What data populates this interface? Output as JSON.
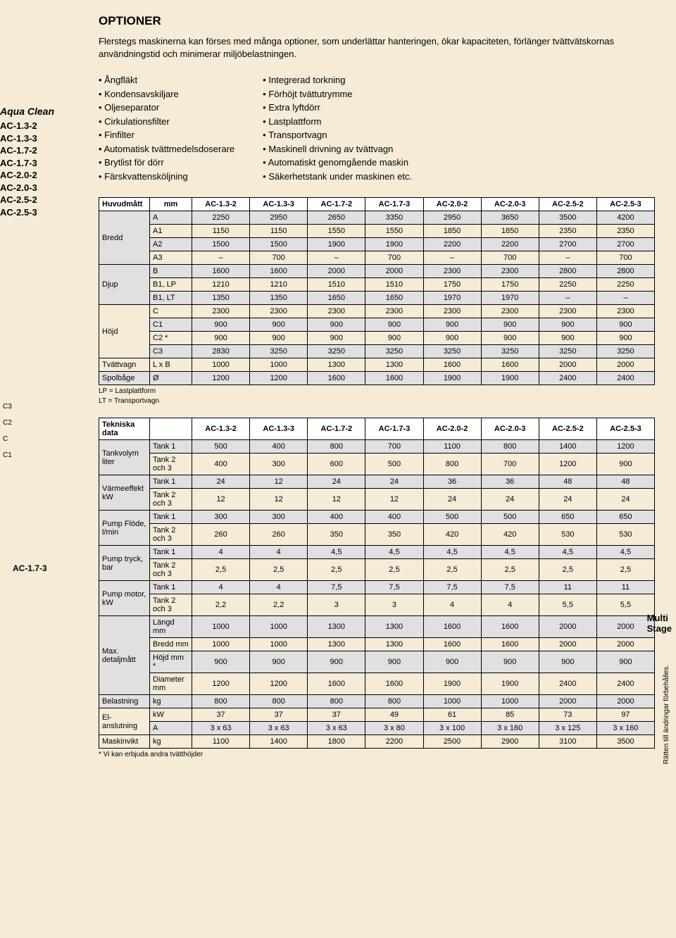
{
  "title": "OPTIONER",
  "intro": "Flerstegs maskinerna kan förses med många optioner, som underlättar hanteringen, ökar kapaciteten, förlänger tvättvätskornas användningstid och minimerar miljöbelastningen.",
  "options_left": [
    "Ångfläkt",
    "Kondensavskiljare",
    "Oljeseparator",
    "Cirkulationsfilter",
    "Finfilter",
    "Automatisk tvättmedelsdoserare",
    "Brytlist för dörr",
    "Färskvattensköljning"
  ],
  "options_right": [
    "Integrerad torkning",
    "Förhöjt tvättutrymme",
    "Extra lyftdörr",
    "Lastplattform",
    "Transportvagn",
    "Maskinell drivning av tvättvagn",
    "Automatiskt genomgående maskin",
    "Säkerhetstank under maskinen etc."
  ],
  "brand": "Aqua Clean",
  "models": [
    "AC-1.3-2",
    "AC-1.3-3",
    "AC-1.7-2",
    "AC-1.7-3",
    "AC-2.0-2",
    "AC-2.0-3",
    "AC-2.5-2",
    "AC-2.5-3"
  ],
  "dia_labels": [
    "C3",
    "C2",
    "C",
    "C1"
  ],
  "ac173_label": "AC-1.7-3",
  "table1": {
    "header": [
      "Huvudmått",
      "mm",
      "AC-1.3-2",
      "AC-1.3-3",
      "AC-1.7-2",
      "AC-1.7-3",
      "AC-2.0-2",
      "AC-2.0-3",
      "AC-2.5-2",
      "AC-2.5-3"
    ],
    "groups": [
      {
        "name": "Bredd",
        "rows": [
          {
            "k": "A",
            "v": [
              "2250",
              "2950",
              "2650",
              "3350",
              "2950",
              "3650",
              "3500",
              "4200"
            ],
            "shade": true
          },
          {
            "k": "A1",
            "v": [
              "1150",
              "1150",
              "1550",
              "1550",
              "1850",
              "1850",
              "2350",
              "2350"
            ]
          },
          {
            "k": "A2",
            "v": [
              "1500",
              "1500",
              "1900",
              "1900",
              "2200",
              "2200",
              "2700",
              "2700"
            ],
            "shade": true
          },
          {
            "k": "A3",
            "v": [
              "–",
              "700",
              "–",
              "700",
              "–",
              "700",
              "–",
              "700"
            ]
          }
        ]
      },
      {
        "name": "Djup",
        "rows": [
          {
            "k": "B",
            "v": [
              "1600",
              "1600",
              "2000",
              "2000",
              "2300",
              "2300",
              "2800",
              "2800"
            ],
            "shade": true
          },
          {
            "k": "B1, LP",
            "v": [
              "1210",
              "1210",
              "1510",
              "1510",
              "1750",
              "1750",
              "2250",
              "2250"
            ]
          },
          {
            "k": "B1, LT",
            "v": [
              "1350",
              "1350",
              "1650",
              "1650",
              "1970",
              "1970",
              "–",
              "–"
            ],
            "shade": true
          }
        ]
      },
      {
        "name": "Höjd",
        "rows": [
          {
            "k": "C",
            "v": [
              "2300",
              "2300",
              "2300",
              "2300",
              "2300",
              "2300",
              "2300",
              "2300"
            ]
          },
          {
            "k": "C1",
            "v": [
              "900",
              "900",
              "900",
              "900",
              "900",
              "900",
              "900",
              "900"
            ],
            "shade": true
          },
          {
            "k": "C2 *",
            "v": [
              "900",
              "900",
              "900",
              "900",
              "900",
              "900",
              "900",
              "900"
            ]
          },
          {
            "k": "C3",
            "v": [
              "2830",
              "3250",
              "3250",
              "3250",
              "3250",
              "3250",
              "3250",
              "3250"
            ],
            "shade": true
          }
        ]
      },
      {
        "name": "Tvättvagn",
        "single": true,
        "rows": [
          {
            "k": "L x B",
            "v": [
              "1000",
              "1000",
              "1300",
              "1300",
              "1600",
              "1600",
              "2000",
              "2000"
            ]
          }
        ]
      },
      {
        "name": "Spolbåge",
        "single": true,
        "rows": [
          {
            "k": "Ø",
            "v": [
              "1200",
              "1200",
              "1600",
              "1600",
              "1900",
              "1900",
              "2400",
              "2400"
            ],
            "shade": true
          }
        ]
      }
    ],
    "note1": "LP = Lastplattform",
    "note2": "LT = Transportvagn"
  },
  "table2": {
    "header": [
      "Tekniska data",
      "",
      "AC-1.3-2",
      "AC-1.3-3",
      "AC-1.7-2",
      "AC-1.7-3",
      "AC-2.0-2",
      "AC-2.0-3",
      "AC-2.5-2",
      "AC-2.5-3"
    ],
    "groups": [
      {
        "name": "Tankvolym liter",
        "rows": [
          {
            "k": "Tank 1",
            "v": [
              "500",
              "400",
              "800",
              "700",
              "1100",
              "800",
              "1400",
              "1200"
            ],
            "shade": true
          },
          {
            "k": "Tank 2 och 3",
            "v": [
              "400",
              "300",
              "600",
              "500",
              "800",
              "700",
              "1200",
              "900"
            ]
          }
        ]
      },
      {
        "name": "Värmeeffekt kW",
        "rows": [
          {
            "k": "Tank 1",
            "v": [
              "24",
              "12",
              "24",
              "24",
              "36",
              "36",
              "48",
              "48"
            ],
            "shade": true
          },
          {
            "k": "Tank 2 och 3",
            "v": [
              "12",
              "12",
              "12",
              "12",
              "24",
              "24",
              "24",
              "24"
            ]
          }
        ]
      },
      {
        "name": "Pump Flöde, l/min",
        "rows": [
          {
            "k": "Tank 1",
            "v": [
              "300",
              "300",
              "400",
              "400",
              "500",
              "500",
              "650",
              "650"
            ],
            "shade": true
          },
          {
            "k": "Tank 2 och 3",
            "v": [
              "260",
              "260",
              "350",
              "350",
              "420",
              "420",
              "530",
              "530"
            ]
          }
        ]
      },
      {
        "name": "Pump tryck, bar",
        "rows": [
          {
            "k": "Tank 1",
            "v": [
              "4",
              "4",
              "4,5",
              "4,5",
              "4,5",
              "4,5",
              "4,5",
              "4,5"
            ],
            "shade": true
          },
          {
            "k": "Tank 2 och 3",
            "v": [
              "2,5",
              "2,5",
              "2,5",
              "2,5",
              "2,5",
              "2,5",
              "2,5",
              "2,5"
            ]
          }
        ]
      },
      {
        "name": "Pump motor, kW",
        "rows": [
          {
            "k": "Tank 1",
            "v": [
              "4",
              "4",
              "7,5",
              "7,5",
              "7,5",
              "7,5",
              "11",
              "11"
            ],
            "shade": true
          },
          {
            "k": "Tank 2 och 3",
            "v": [
              "2,2",
              "2,2",
              "3",
              "3",
              "4",
              "4",
              "5,5",
              "5,5"
            ]
          }
        ]
      },
      {
        "name": "Max. detaljmått",
        "rows": [
          {
            "k": "Längd  mm",
            "v": [
              "1000",
              "1000",
              "1300",
              "1300",
              "1600",
              "1600",
              "2000",
              "2000"
            ],
            "shade": true
          },
          {
            "k": "Bredd  mm",
            "v": [
              "1000",
              "1000",
              "1300",
              "1300",
              "1600",
              "1600",
              "2000",
              "2000"
            ]
          },
          {
            "k": "Höjd   mm *",
            "v": [
              "900",
              "900",
              "900",
              "900",
              "900",
              "900",
              "900",
              "900"
            ],
            "shade": true
          },
          {
            "k": "Diameter mm",
            "v": [
              "1200",
              "1200",
              "1600",
              "1600",
              "1900",
              "1900",
              "2400",
              "2400"
            ]
          }
        ]
      },
      {
        "name": "Belastning",
        "single": true,
        "rows": [
          {
            "k": "kg",
            "v": [
              "800",
              "800",
              "800",
              "800",
              "1000",
              "1000",
              "2000",
              "2000"
            ],
            "shade": true
          }
        ]
      },
      {
        "name": "El-anslutning",
        "rows": [
          {
            "k": "kW",
            "v": [
              "37",
              "37",
              "37",
              "49",
              "61",
              "85",
              "73",
              "97"
            ]
          },
          {
            "k": "A",
            "v": [
              "3 x 63",
              "3 x 63",
              "3 x 63",
              "3 x 80",
              "3 x 100",
              "3 x 160",
              "3 x 125",
              "3 x 160"
            ],
            "shade": true
          }
        ]
      },
      {
        "name": "Maskinvikt",
        "single": true,
        "rows": [
          {
            "k": "kg",
            "v": [
              "1100",
              "1400",
              "1800",
              "2200",
              "2500",
              "2900",
              "3100",
              "3500"
            ]
          }
        ]
      }
    ],
    "note": "* Vi kan erbjuda andra tvätthöjder"
  },
  "side_tag": "Multi\nStage",
  "side_vert": "Rätten till ändringar förbehålles."
}
